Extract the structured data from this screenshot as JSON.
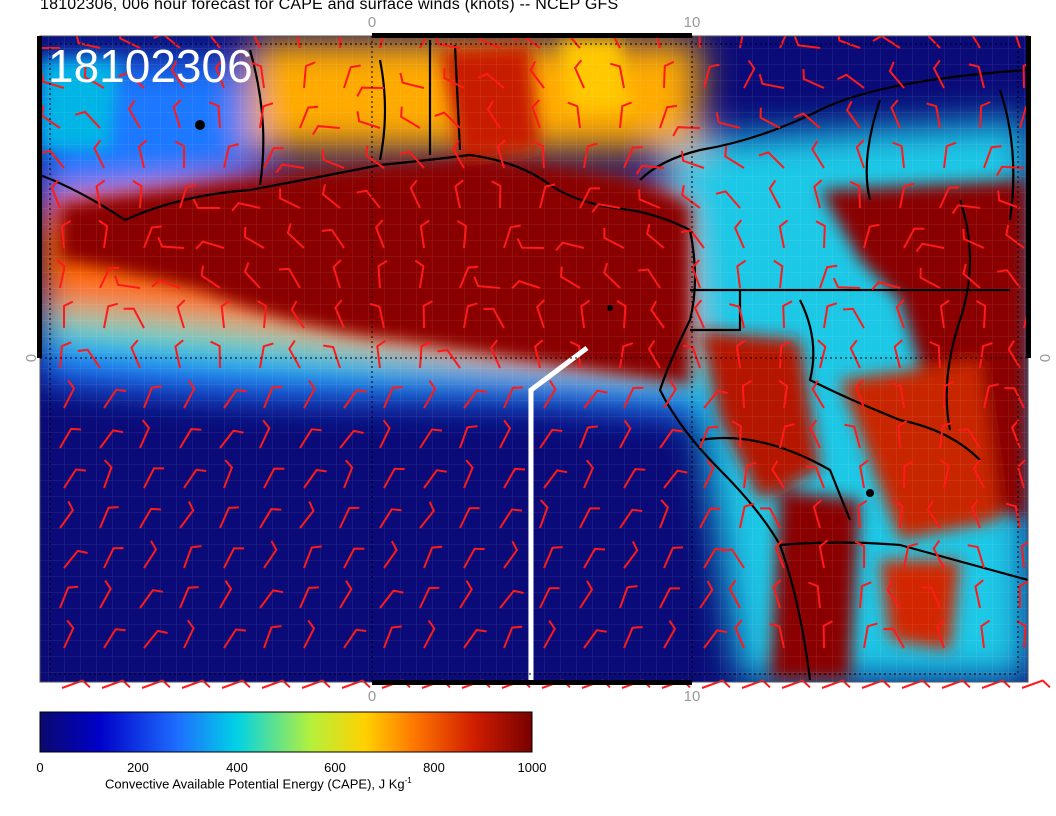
{
  "title": "18102306, 006 hour forecast for CAPE and surface winds (knots) -- NCEP GFS",
  "stamp": "18102306",
  "axis_ticks": {
    "top": [
      "0",
      "10"
    ],
    "bottom": [
      "0",
      "10"
    ],
    "left": [
      "0"
    ],
    "right": [
      "0"
    ]
  },
  "colorbar": {
    "ticks": [
      "0",
      "200",
      "400",
      "600",
      "800",
      "1000"
    ],
    "values": [
      0,
      200,
      400,
      600,
      800,
      1000
    ],
    "label_main": "Convective Available Potential Energy (CAPE), J Kg",
    "label_sup": "-1",
    "colors": [
      "#0a0a6e",
      "#0000c8",
      "#1e6eff",
      "#00d2e6",
      "#b4f03c",
      "#ffd200",
      "#ff7800",
      "#d21e00",
      "#780000"
    ]
  },
  "colors": {
    "barb": "#ff1a1a",
    "coast": "#000000",
    "track": "#ffffff"
  }
}
